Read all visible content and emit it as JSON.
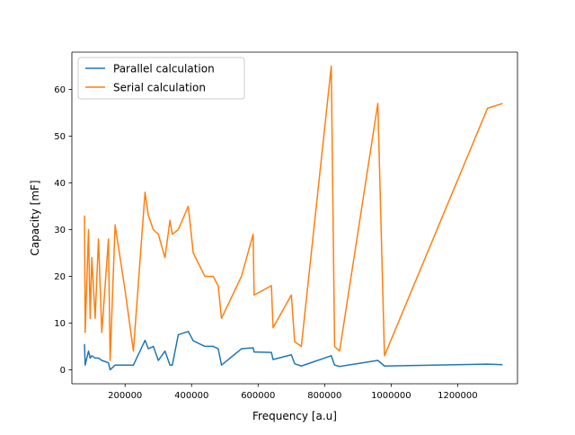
{
  "chart_data": {
    "type": "line",
    "xlabel": "Frequency [a.u]",
    "ylabel": "Capacity [mF]",
    "xlim": [
      40000,
      1380000
    ],
    "ylim": [
      -3,
      68
    ],
    "xticks": [
      200000,
      400000,
      600000,
      800000,
      1000000,
      1200000
    ],
    "xtick_labels": [
      "200000",
      "400000",
      "600000",
      "800000",
      "1000000",
      "1200000"
    ],
    "yticks": [
      0,
      10,
      20,
      30,
      40,
      50,
      60
    ],
    "ytick_labels": [
      "0",
      "10",
      "20",
      "30",
      "40",
      "50",
      "60"
    ],
    "grid": false,
    "legend_position": "top-left",
    "series": [
      {
        "name": "Parallel calculation",
        "color": "#1f77b4",
        "x": [
          78000,
          80000,
          90000,
          95000,
          100000,
          110000,
          120000,
          130000,
          150000,
          155000,
          170000,
          200000,
          225000,
          260000,
          270000,
          285000,
          300000,
          320000,
          335000,
          342000,
          360000,
          390000,
          405000,
          440000,
          465000,
          480000,
          490000,
          550000,
          585000,
          588000,
          640000,
          645000,
          700000,
          710000,
          730000,
          820000,
          830000,
          845000,
          960000,
          980000,
          1290000,
          1335000
        ],
        "y": [
          5.5,
          1,
          4,
          2.5,
          3,
          2.5,
          2.5,
          2,
          1.5,
          0,
          1,
          1,
          1,
          6.3,
          4.5,
          5,
          2,
          4,
          1,
          1,
          7.5,
          8.2,
          6.2,
          5,
          5,
          4.5,
          1,
          4.5,
          4.7,
          3.8,
          3.7,
          2.2,
          3.2,
          1.3,
          0.8,
          3,
          1,
          0.7,
          2,
          0.8,
          1.2,
          1.1
        ]
      },
      {
        "name": "Serial calculation",
        "color": "#ff7f0e",
        "x": [
          78000,
          80000,
          90000,
          95000,
          100000,
          110000,
          120000,
          130000,
          150000,
          155000,
          170000,
          200000,
          225000,
          260000,
          270000,
          285000,
          300000,
          320000,
          335000,
          342000,
          360000,
          390000,
          405000,
          440000,
          465000,
          480000,
          490000,
          550000,
          585000,
          588000,
          640000,
          645000,
          700000,
          710000,
          730000,
          820000,
          830000,
          845000,
          960000,
          980000,
          1290000,
          1335000
        ],
        "y": [
          33,
          8,
          30,
          11,
          24,
          11,
          28,
          8,
          28,
          2,
          31,
          17,
          4,
          38,
          33,
          30,
          29,
          24,
          32,
          29,
          30,
          35,
          25,
          20,
          20,
          18,
          11,
          20,
          29,
          16,
          18,
          9,
          16,
          6,
          5,
          65,
          5,
          4,
          57,
          3,
          56,
          57
        ]
      }
    ]
  }
}
